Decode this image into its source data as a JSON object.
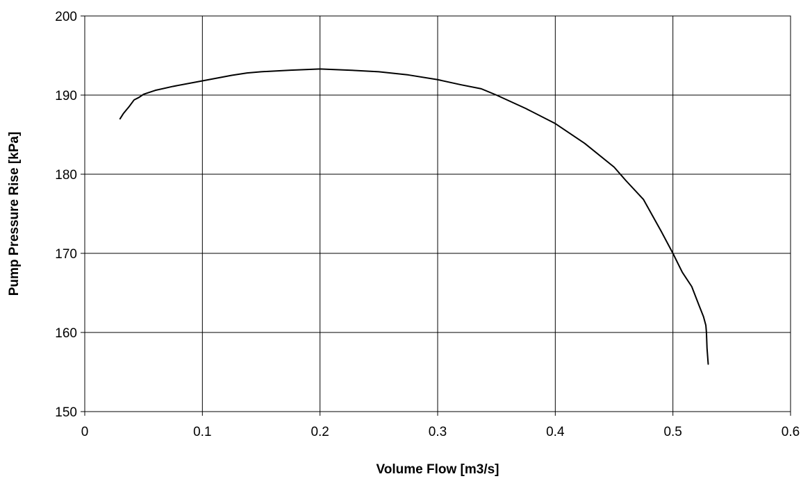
{
  "chart_data": {
    "type": "line",
    "title": "",
    "xlabel": "Volume Flow [m3/s]",
    "ylabel": "Pump Pressure Rise [kPa]",
    "xlim": [
      0,
      0.6
    ],
    "ylim": [
      150,
      200
    ],
    "x_ticks": [
      0,
      0.1,
      0.2,
      0.3,
      0.4,
      0.5,
      0.6
    ],
    "x_tick_labels": [
      "0",
      "0.1",
      "0.2",
      "0.3",
      "0.4",
      "0.5",
      "0.6"
    ],
    "y_ticks": [
      150,
      160,
      170,
      180,
      190,
      200
    ],
    "y_tick_labels": [
      "150",
      "160",
      "170",
      "180",
      "190",
      "200"
    ],
    "grid": true,
    "legend": "none",
    "series": [
      {
        "color": "#000000",
        "x": [
          0.03,
          0.033,
          0.038,
          0.042,
          0.046,
          0.05,
          0.06,
          0.075,
          0.1,
          0.125,
          0.138,
          0.15,
          0.175,
          0.2,
          0.225,
          0.25,
          0.275,
          0.3,
          0.32,
          0.337,
          0.35,
          0.375,
          0.4,
          0.425,
          0.45,
          0.46,
          0.475,
          0.49,
          0.5,
          0.508,
          0.516,
          0.522,
          0.526,
          0.528,
          0.5285,
          0.529,
          0.5295,
          0.53
        ],
        "y": [
          187.0,
          187.7,
          188.6,
          189.4,
          189.7,
          190.1,
          190.6,
          191.1,
          191.8,
          192.5,
          192.8,
          192.95,
          193.15,
          193.3,
          193.15,
          192.95,
          192.55,
          191.95,
          191.3,
          190.8,
          190.0,
          188.3,
          186.4,
          183.9,
          180.9,
          179.2,
          176.8,
          172.8,
          170.0,
          167.6,
          165.8,
          163.5,
          162.0,
          160.9,
          160.0,
          158.0,
          157.0,
          156.0
        ]
      }
    ]
  }
}
